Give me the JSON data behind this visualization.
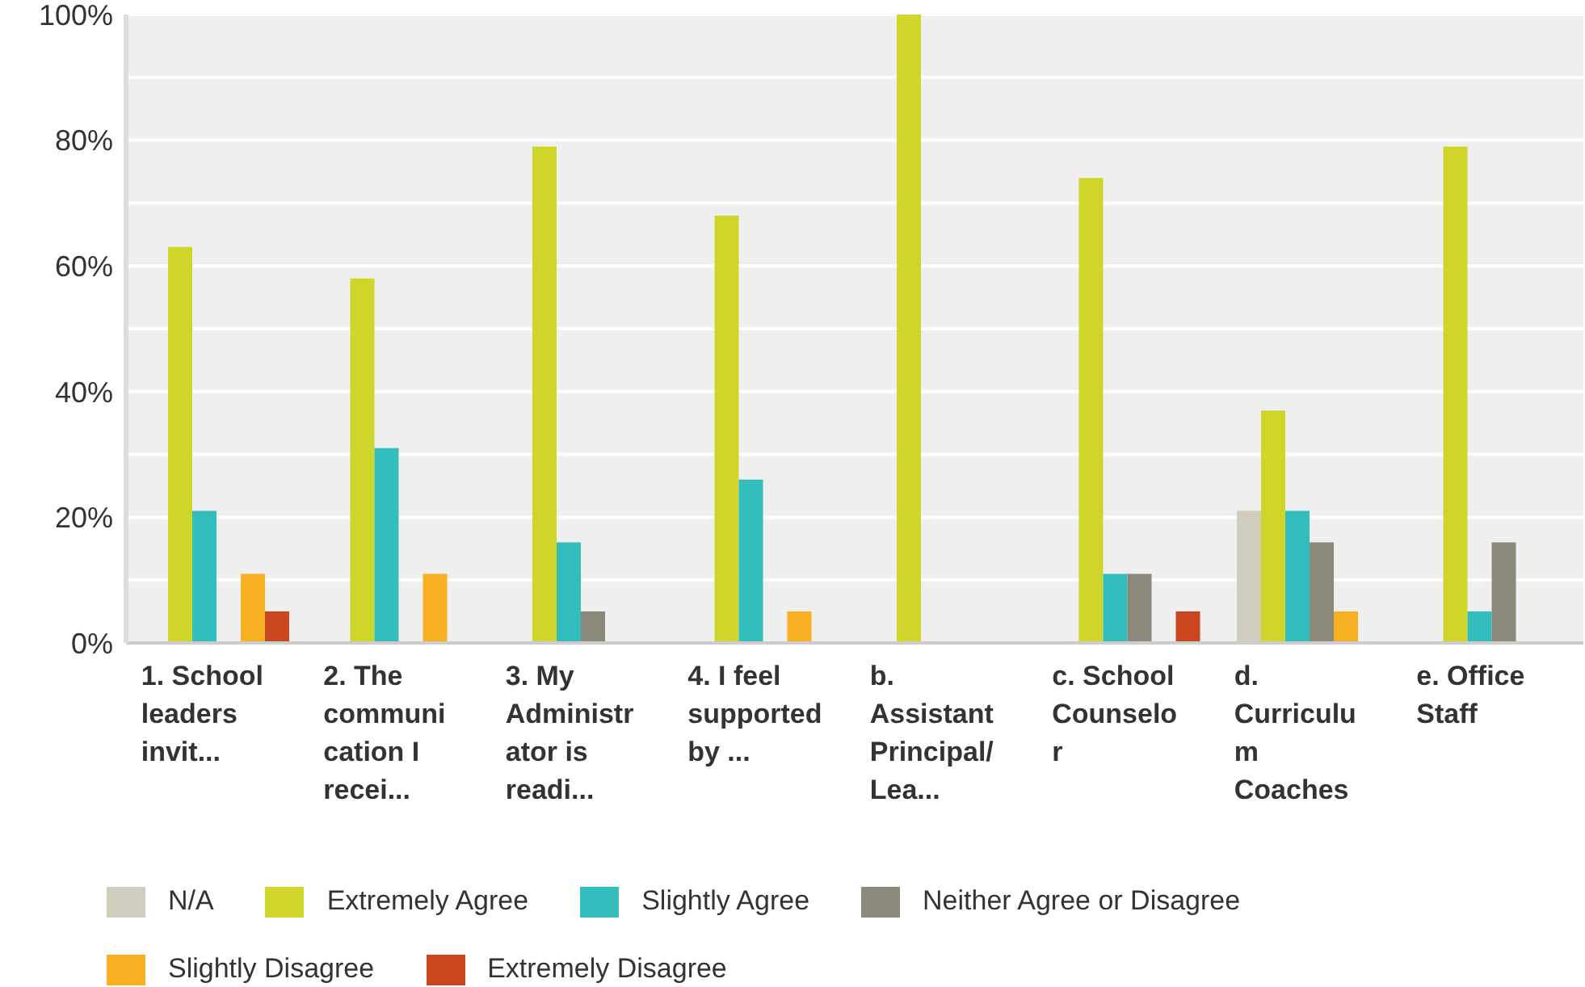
{
  "chart_data": {
    "type": "bar",
    "categories": [
      "1. School leaders invit...",
      "2. The communication I recei...",
      "3. My Administrator is readi...",
      "4. I feel supported by ...",
      "b. Assistant Principal/Lea...",
      "c. School Counselor",
      "d. Curriculum Coaches",
      "e. Office Staff"
    ],
    "series": [
      {
        "name": "N/A",
        "color": "#d0cdbf",
        "values": [
          0,
          0,
          0,
          0,
          0,
          0,
          21,
          0
        ]
      },
      {
        "name": "Extremely Agree",
        "color": "#d0d52a",
        "values": [
          63,
          58,
          79,
          68,
          100,
          74,
          37,
          79
        ]
      },
      {
        "name": "Slightly Agree",
        "color": "#33bdbd",
        "values": [
          21,
          31,
          16,
          26,
          0,
          11,
          21,
          5
        ]
      },
      {
        "name": "Neither Agree or Disagree",
        "color": "#8b8a7a",
        "values": [
          0,
          0,
          5,
          0,
          0,
          11,
          16,
          16
        ]
      },
      {
        "name": "Slightly Disagree",
        "color": "#f7b021",
        "values": [
          11,
          11,
          0,
          5,
          0,
          0,
          5,
          0
        ]
      },
      {
        "name": "Extremely Disagree",
        "color": "#c9461e",
        "values": [
          5,
          0,
          0,
          0,
          0,
          5,
          0,
          0
        ]
      }
    ],
    "ylim": [
      0,
      100
    ],
    "yticks": [
      {
        "value": 0,
        "label": "0%"
      },
      {
        "value": 10,
        "label": null
      },
      {
        "value": 20,
        "label": "20%"
      },
      {
        "value": 30,
        "label": null
      },
      {
        "value": 40,
        "label": "40%"
      },
      {
        "value": 50,
        "label": null
      },
      {
        "value": 60,
        "label": "60%"
      },
      {
        "value": 70,
        "label": null
      },
      {
        "value": 80,
        "label": "80%"
      },
      {
        "value": 90,
        "label": null
      },
      {
        "value": 100,
        "label": "100%"
      }
    ],
    "grid": "y",
    "legend": "bottom"
  }
}
